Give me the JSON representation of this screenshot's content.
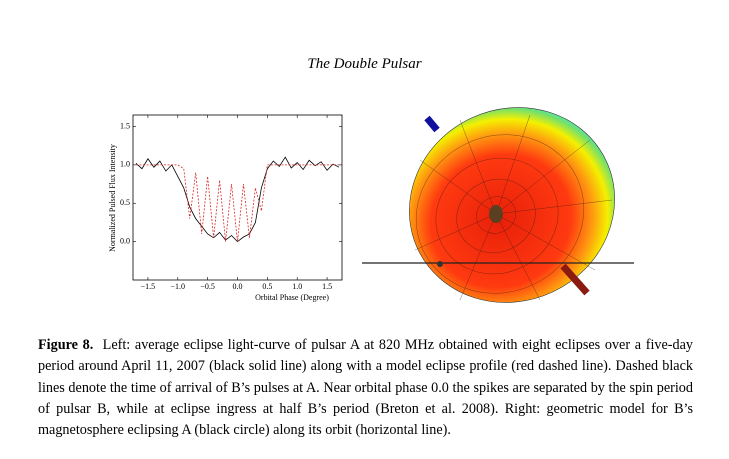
{
  "header": {
    "title": "The Double Pulsar"
  },
  "chart_data": {
    "type": "line",
    "xlabel": "Orbital Phase (Degree)",
    "ylabel": "Normalized Pulsed Flux Intensity",
    "x": [
      -1.7,
      -1.6,
      -1.5,
      -1.4,
      -1.3,
      -1.2,
      -1.1,
      -1.0,
      -0.9,
      -0.8,
      -0.7,
      -0.6,
      -0.5,
      -0.4,
      -0.3,
      -0.2,
      -0.1,
      0.0,
      0.1,
      0.2,
      0.3,
      0.4,
      0.5,
      0.6,
      0.7,
      0.8,
      0.9,
      1.0,
      1.1,
      1.2,
      1.3,
      1.4,
      1.5,
      1.6,
      1.7
    ],
    "series": [
      {
        "color": "#000000",
        "dashed": false,
        "values": [
          1.02,
          0.95,
          1.08,
          0.97,
          1.05,
          0.92,
          1.0,
          0.85,
          0.7,
          0.45,
          0.3,
          0.2,
          0.1,
          0.05,
          0.12,
          0.02,
          0.08,
          0.0,
          0.06,
          0.1,
          0.25,
          0.7,
          0.95,
          1.05,
          0.98,
          1.1,
          0.96,
          1.03,
          0.94,
          1.06,
          0.99,
          1.04,
          0.93,
          1.01,
          0.97
        ]
      },
      {
        "color": "#d62728",
        "dashed": true,
        "values": [
          1.0,
          1.0,
          1.0,
          1.0,
          1.0,
          1.0,
          1.0,
          1.0,
          0.95,
          0.3,
          0.9,
          0.1,
          0.85,
          0.05,
          0.8,
          0.0,
          0.75,
          0.0,
          0.75,
          0.05,
          0.7,
          0.4,
          1.0,
          1.0,
          1.0,
          1.0,
          1.0,
          1.0,
          1.0,
          1.0,
          1.0,
          1.0,
          1.0,
          1.0,
          1.0
        ]
      }
    ],
    "xlim": [
      -1.75,
      1.75
    ],
    "ylim": [
      -0.5,
      1.65
    ],
    "xticks": [
      {
        "value": -1.5,
        "label": "−1.5"
      },
      {
        "value": -1.0,
        "label": "−1.0"
      },
      {
        "value": -0.5,
        "label": "−0.5"
      },
      {
        "value": 0,
        "label": "0.0"
      },
      0.5,
      {
        "value": 1,
        "label": "1.0"
      },
      1.5
    ],
    "yticks": [
      {
        "value": 0,
        "label": "0.0"
      },
      0.5,
      {
        "value": 1,
        "label": "1.0"
      },
      1.5
    ]
  },
  "caption": {
    "label": "Figure 8.",
    "text": "Left: average eclipse light-curve of pulsar A at 820 MHz obtained with eight eclipses over a five-day period around April 11, 2007 (black solid line) along with a model eclipse profile (red dashed line). Dashed black lines denote the time of arrival of B’s pulses at A. Near orbital phase 0.0 the spikes are separated by the spin period of pulsar B, while at eclipse ingress at half B’s period (Breton et al. 2008). Right: geometric model for B’s magnetosphere eclipsing A (black circle) along its orbit (horizontal line)."
  }
}
